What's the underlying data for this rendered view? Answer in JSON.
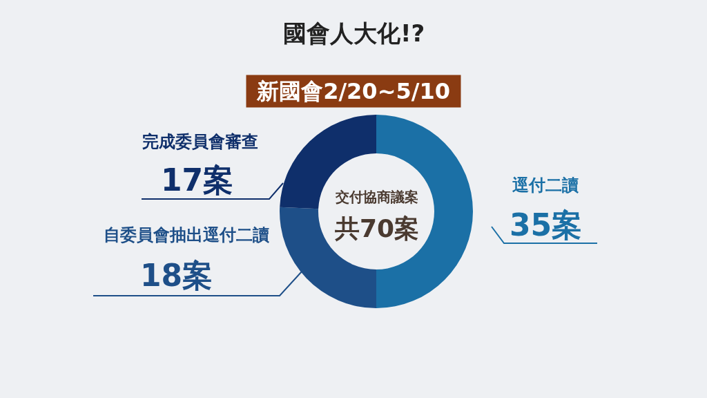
{
  "chart_data": {
    "type": "donut",
    "title": "國會人大化!?",
    "subtitle": "新國會2/20~5/10",
    "categories": [
      "逕付二讀",
      "自委員會抽出逕付二讀",
      "完成委員會審查"
    ],
    "values": [
      35,
      18,
      17
    ],
    "colors": [
      "#1b70a6",
      "#1e4f88",
      "#0f2f6b"
    ],
    "value_labels": [
      "35案",
      "18案",
      "17案"
    ],
    "annotations": [
      "交付協商議案",
      "共70案"
    ],
    "legend": false
  }
}
